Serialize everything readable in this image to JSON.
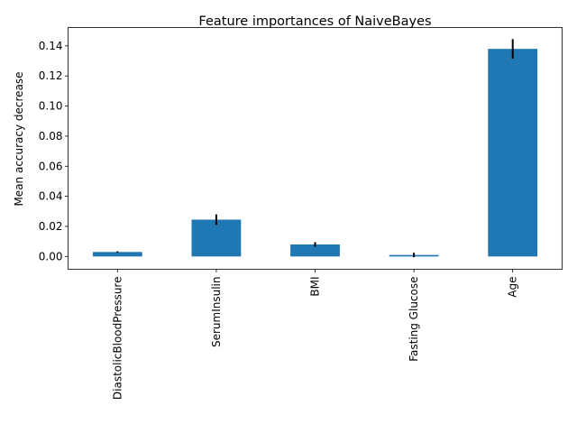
{
  "chart_data": {
    "type": "bar",
    "title": "Feature importances of NaiveBayes",
    "xlabel": "",
    "ylabel": "Mean accuracy decrease",
    "categories": [
      "DiastolicBloodPressure",
      "SerumInsulin",
      "BMI",
      "Fasting Glucose",
      "Age"
    ],
    "values": [
      0.003,
      0.0245,
      0.008,
      0.001,
      0.138
    ],
    "errors": [
      0.0005,
      0.0035,
      0.0015,
      0.0015,
      0.0065
    ],
    "ylim": [
      -0.0085,
      0.1522
    ],
    "yticks": [
      0.0,
      0.02,
      0.04,
      0.06,
      0.08,
      0.1,
      0.12,
      0.14
    ],
    "ytick_labels": [
      "0.00",
      "0.02",
      "0.04",
      "0.06",
      "0.08",
      "0.10",
      "0.12",
      "0.14"
    ],
    "bar_color": "#1f77b4",
    "error_color": "#000000",
    "grid": false,
    "legend": "none"
  }
}
